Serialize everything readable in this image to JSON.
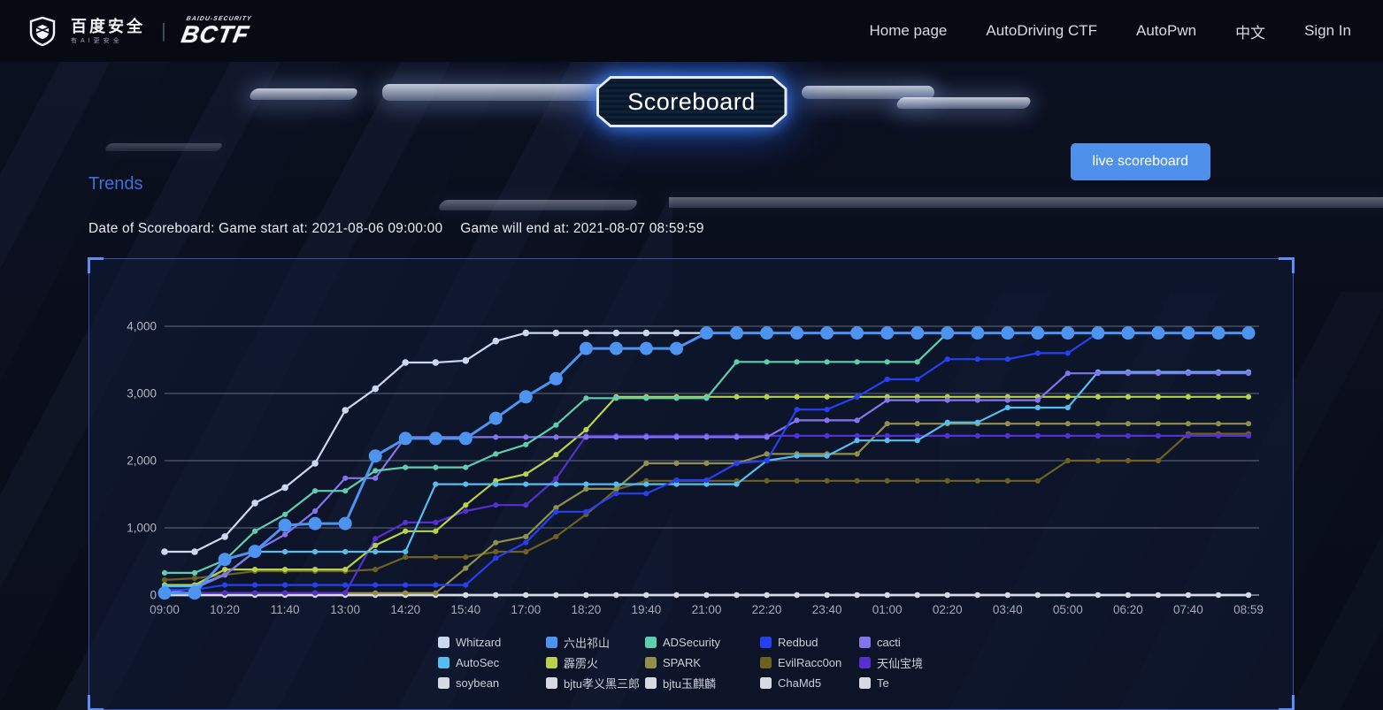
{
  "header": {
    "brand": {
      "baidu_logo_text": "百度安全",
      "baidu_logo_sub": "有AI更安全",
      "bctf_logo_text": "BCTF",
      "bctf_logo_sub": "BAIDU-SECURITY"
    },
    "nav": [
      {
        "label": "Home page"
      },
      {
        "label": "AutoDriving CTF"
      },
      {
        "label": "AutoPwn"
      },
      {
        "label": "中文"
      },
      {
        "label": "Sign In"
      }
    ]
  },
  "hero": {
    "title": "Scoreboard",
    "live_button_label": "live scoreboard"
  },
  "section": {
    "heading": "Trends",
    "date_start": "Date of Scoreboard: Game start at: 2021-08-06 09:00:00",
    "date_end": "Game will end at: 2021-08-07 08:59:59"
  },
  "colors": {
    "accent_button": "#4e90ea",
    "trends_heading": "#3e6fd9",
    "panel_border": "#3e5cbe",
    "corner_bracket": "#5d8ef4",
    "grid_line": "#cdd1dc",
    "axis_label": "#aab0bc"
  },
  "chart_data": {
    "type": "line",
    "title": "",
    "xlabel": "",
    "ylabel": "",
    "ylim": [
      0,
      4000
    ],
    "grid": true,
    "legend_position": "bottom",
    "ytick_labels": [
      "0",
      "1,000",
      "2,000",
      "3,000",
      "4,000"
    ],
    "x": [
      "09:00",
      "09:40",
      "10:20",
      "11:00",
      "11:40",
      "12:20",
      "13:00",
      "13:40",
      "14:20",
      "15:00",
      "15:40",
      "16:20",
      "17:00",
      "17:40",
      "18:20",
      "19:00",
      "19:40",
      "20:20",
      "21:00",
      "21:40",
      "22:20",
      "23:00",
      "23:40",
      "00:20",
      "01:00",
      "01:40",
      "02:20",
      "03:00",
      "03:40",
      "04:20",
      "05:00",
      "05:40",
      "06:20",
      "07:00",
      "07:40",
      "08:20",
      "08:59"
    ],
    "x_ticks_shown": [
      "09:00",
      "10:20",
      "11:40",
      "13:00",
      "14:20",
      "15:40",
      "17:00",
      "18:20",
      "19:40",
      "21:00",
      "22:20",
      "23:40",
      "01:00",
      "02:20",
      "03:40",
      "05:00",
      "06:20",
      "07:40",
      "08:59"
    ],
    "series": [
      {
        "name": "Whitzard",
        "color": "#ccd8ef",
        "values": [
          645,
          645,
          870,
          1370,
          1600,
          1960,
          2750,
          3070,
          3460,
          3460,
          3490,
          3780,
          3900,
          3900,
          3900,
          3900,
          3900,
          3900,
          3900,
          3900,
          3900,
          3900,
          3900,
          3900,
          3900,
          3900,
          3900,
          3900,
          3900,
          3900,
          3900,
          3900,
          3900,
          3900,
          3900,
          3900,
          3900
        ]
      },
      {
        "name": "六出祁山",
        "color": "#4d94f0",
        "big_marker": true,
        "values": [
          30,
          30,
          530,
          650,
          1040,
          1065,
          1065,
          2070,
          2330,
          2330,
          2330,
          2630,
          2950,
          3220,
          3670,
          3670,
          3670,
          3670,
          3900,
          3900,
          3900,
          3900,
          3900,
          3900,
          3900,
          3900,
          3900,
          3900,
          3900,
          3900,
          3900,
          3900,
          3900,
          3900,
          3900,
          3900,
          3900
        ]
      },
      {
        "name": "ADSecurity",
        "color": "#5ecfae",
        "values": [
          330,
          330,
          520,
          950,
          1200,
          1550,
          1550,
          1850,
          1900,
          1900,
          1900,
          2100,
          2240,
          2530,
          2930,
          2930,
          2930,
          2930,
          2930,
          3470,
          3470,
          3470,
          3470,
          3470,
          3470,
          3470,
          3900,
          3900,
          3900,
          3900,
          3900,
          3900,
          3900,
          3900,
          3900,
          3900,
          3900
        ]
      },
      {
        "name": "Redbud",
        "color": "#2540ee",
        "values": [
          80,
          80,
          150,
          150,
          150,
          150,
          150,
          150,
          150,
          150,
          150,
          550,
          780,
          1240,
          1240,
          1510,
          1510,
          1710,
          1710,
          1960,
          2000,
          2760,
          2760,
          2950,
          3210,
          3210,
          3510,
          3510,
          3510,
          3600,
          3600,
          3900,
          3900,
          3900,
          3900,
          3900,
          3900
        ]
      },
      {
        "name": "cacti",
        "color": "#8474ec",
        "values": [
          30,
          100,
          300,
          650,
          900,
          1250,
          1740,
          1740,
          2350,
          2350,
          2350,
          2350,
          2350,
          2350,
          2350,
          2350,
          2350,
          2350,
          2350,
          2350,
          2350,
          2600,
          2600,
          2600,
          2900,
          2900,
          2900,
          2900,
          2900,
          2900,
          3300,
          3300,
          3300,
          3300,
          3300,
          3300,
          3300
        ]
      },
      {
        "name": "AutoSec",
        "color": "#55bdf0",
        "values": [
          130,
          130,
          300,
          645,
          645,
          645,
          645,
          645,
          645,
          1650,
          1650,
          1650,
          1650,
          1650,
          1650,
          1650,
          1650,
          1650,
          1650,
          1650,
          2000,
          2070,
          2070,
          2300,
          2300,
          2300,
          2570,
          2570,
          2790,
          2790,
          2790,
          3320,
          3320,
          3320,
          3320,
          3320,
          3320
        ]
      },
      {
        "name": "霹雳火",
        "color": "#b9d14b",
        "values": [
          150,
          150,
          380,
          380,
          380,
          380,
          380,
          740,
          950,
          950,
          1340,
          1700,
          1800,
          2090,
          2460,
          2950,
          2950,
          2950,
          2950,
          2950,
          2950,
          2950,
          2950,
          2950,
          2950,
          2950,
          2950,
          2950,
          2950,
          2950,
          2950,
          2950,
          2950,
          2950,
          2950,
          2950,
          2950
        ]
      },
      {
        "name": "SPARK",
        "color": "#90904a",
        "values": [
          30,
          30,
          30,
          30,
          30,
          30,
          30,
          30,
          30,
          30,
          400,
          780,
          870,
          1300,
          1580,
          1580,
          1960,
          1960,
          1960,
          1960,
          2100,
          2100,
          2100,
          2100,
          2550,
          2550,
          2550,
          2550,
          2550,
          2550,
          2550,
          2550,
          2550,
          2550,
          2550,
          2550,
          2550
        ]
      },
      {
        "name": "EvilRacc0on",
        "color": "#6e611f",
        "values": [
          225,
          250,
          300,
          355,
          355,
          355,
          355,
          380,
          565,
          565,
          565,
          645,
          645,
          870,
          1200,
          1570,
          1700,
          1700,
          1700,
          1700,
          1700,
          1700,
          1700,
          1700,
          1700,
          1700,
          1700,
          1700,
          1700,
          1700,
          2000,
          2000,
          2000,
          2000,
          2400,
          2400,
          2400
        ]
      },
      {
        "name": "天仙宝境",
        "color": "#5431cf",
        "values": [
          30,
          30,
          30,
          30,
          30,
          30,
          30,
          840,
          1080,
          1080,
          1250,
          1340,
          1340,
          1730,
          2370,
          2370,
          2370,
          2370,
          2370,
          2370,
          2370,
          2370,
          2370,
          2370,
          2370,
          2370,
          2370,
          2370,
          2370,
          2370,
          2370,
          2370,
          2370,
          2370,
          2370,
          2370,
          2370
        ]
      },
      {
        "name": "soybean",
        "color": "#d6dae2",
        "values": [
          0,
          0,
          0,
          0,
          0,
          0,
          0,
          0,
          0,
          0,
          0,
          0,
          0,
          0,
          0,
          0,
          0,
          0,
          0,
          0,
          0,
          0,
          0,
          0,
          0,
          0,
          0,
          0,
          0,
          0,
          0,
          0,
          0,
          0,
          0,
          0,
          0
        ]
      },
      {
        "name": "bjtu孝义黑三郎",
        "color": "#d6dae2",
        "values": [
          0,
          0,
          0,
          0,
          0,
          0,
          0,
          0,
          0,
          0,
          0,
          0,
          0,
          0,
          0,
          0,
          0,
          0,
          0,
          0,
          0,
          0,
          0,
          0,
          0,
          0,
          0,
          0,
          0,
          0,
          0,
          0,
          0,
          0,
          0,
          0,
          0
        ]
      },
      {
        "name": "bjtu玉麒麟",
        "color": "#d6dae2",
        "values": [
          0,
          0,
          0,
          0,
          0,
          0,
          0,
          0,
          0,
          0,
          0,
          0,
          0,
          0,
          0,
          0,
          0,
          0,
          0,
          0,
          0,
          0,
          0,
          0,
          0,
          0,
          0,
          0,
          0,
          0,
          0,
          0,
          0,
          0,
          0,
          0,
          0
        ]
      },
      {
        "name": "ChaMd5",
        "color": "#d6dae2",
        "values": [
          0,
          0,
          0,
          0,
          0,
          0,
          0,
          0,
          0,
          0,
          0,
          0,
          0,
          0,
          0,
          0,
          0,
          0,
          0,
          0,
          0,
          0,
          0,
          0,
          0,
          0,
          0,
          0,
          0,
          0,
          0,
          0,
          0,
          0,
          0,
          0,
          0
        ]
      },
      {
        "name": "Te",
        "color": "#d6dae2",
        "values": [
          0,
          0,
          0,
          0,
          0,
          0,
          0,
          0,
          0,
          0,
          0,
          0,
          0,
          0,
          0,
          0,
          0,
          0,
          0,
          0,
          0,
          0,
          0,
          0,
          0,
          0,
          0,
          0,
          0,
          0,
          0,
          0,
          0,
          0,
          0,
          0,
          0
        ]
      }
    ]
  }
}
